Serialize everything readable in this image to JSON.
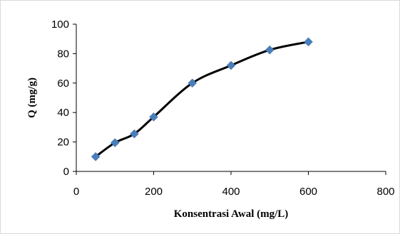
{
  "chart_data": {
    "type": "scatter",
    "xlabel": "Konsentrasi Awal (mg/L)",
    "ylabel": "Q (mg/g)",
    "xlim": [
      0,
      800
    ],
    "ylim": [
      0,
      100
    ],
    "xticks": [
      0,
      200,
      400,
      600,
      800
    ],
    "yticks": [
      0,
      20,
      40,
      60,
      80,
      100
    ],
    "grid": false,
    "smooth_line": true,
    "marker": "diamond",
    "colors": {
      "marker": "#4a7ebb",
      "line": "#000000",
      "axis": "#000000"
    },
    "series": [
      {
        "x": [
          50,
          100,
          150,
          200,
          300,
          400,
          500,
          600
        ],
        "y": [
          10,
          19.5,
          25.5,
          37,
          60,
          72,
          82.5,
          88
        ]
      }
    ]
  }
}
